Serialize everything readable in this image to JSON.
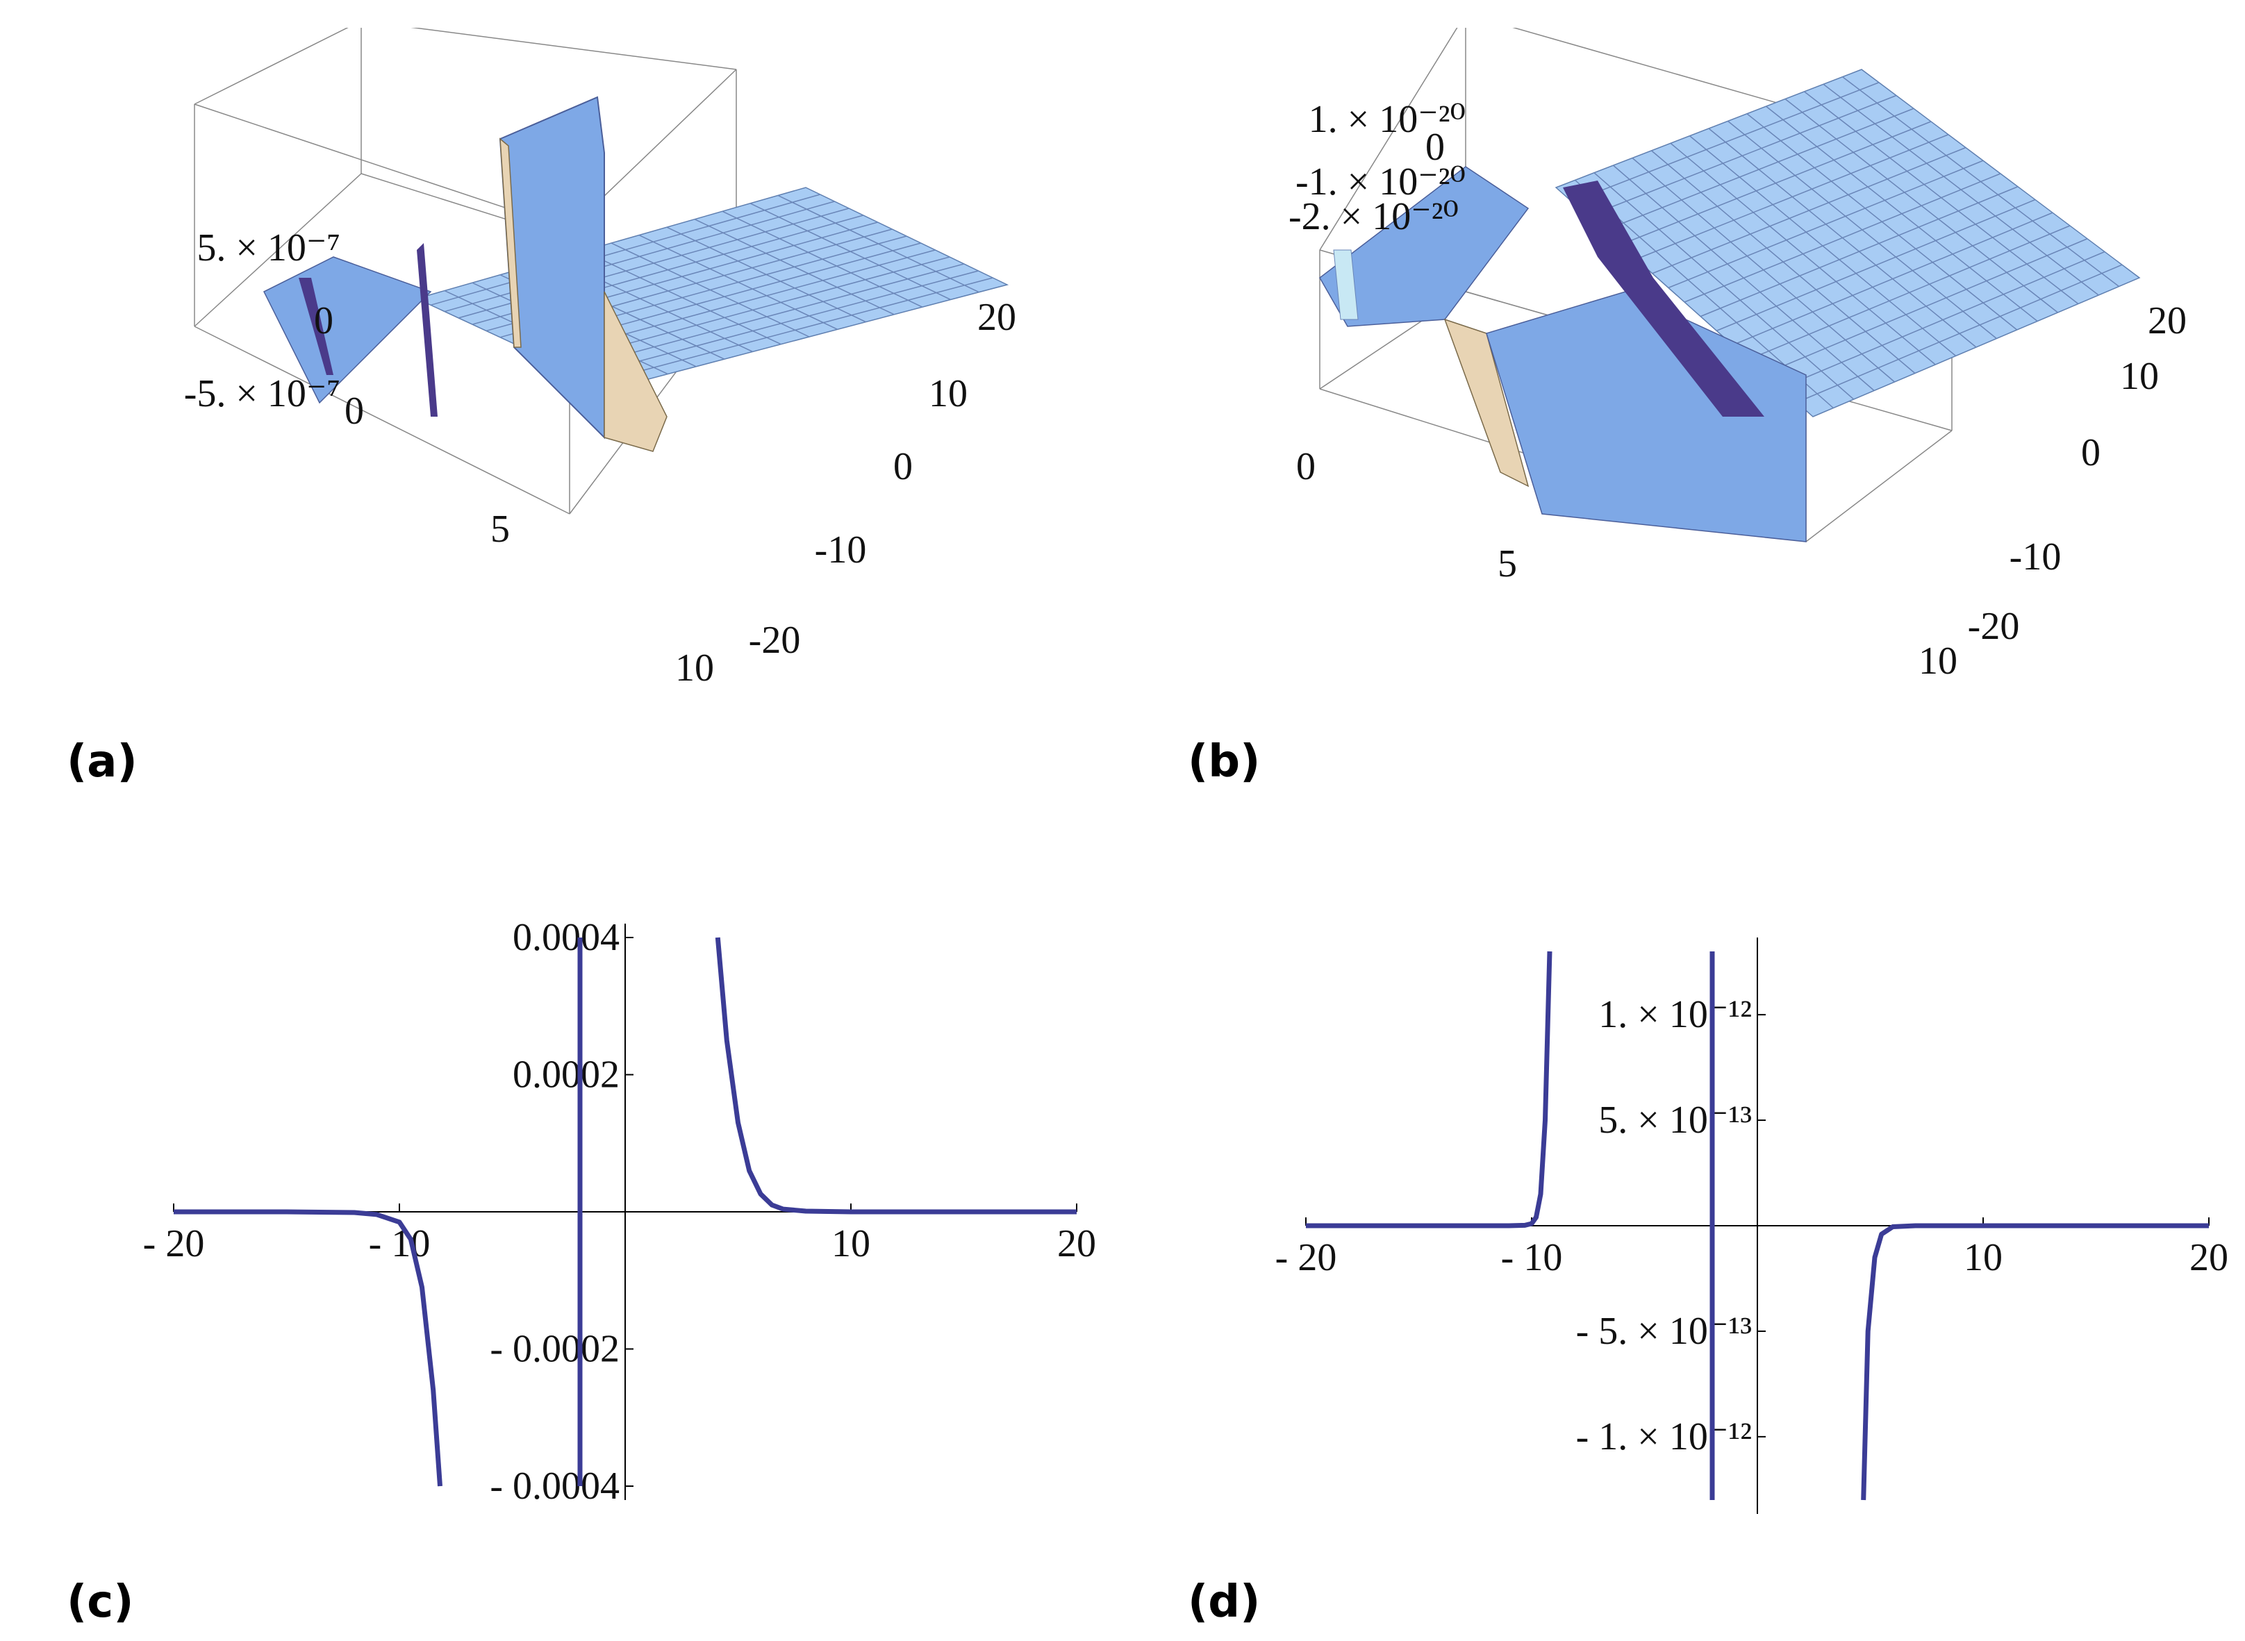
{
  "captions": {
    "a": "(a)",
    "b": "(b)",
    "c": "(c)",
    "d": "(d)"
  },
  "colors": {
    "surface": "#a8ccf4",
    "surface_dark": "#7ea8e6",
    "wall_light": "#e8d4b4",
    "wall_dark": "#4a3a8a",
    "curve": "#3b3c96",
    "axis": "#000000"
  },
  "chart_data": [
    {
      "id": "a",
      "type": "surface3d",
      "x_ticks": [
        "0",
        "5",
        "10"
      ],
      "y_ticks": [
        "-20",
        "-10",
        "0",
        "10",
        "20"
      ],
      "z_ticks": [
        "5. × 10⁻⁷",
        "0",
        "-5. × 10⁻⁷"
      ],
      "xlim": [
        0,
        10
      ],
      "ylim": [
        -20,
        20
      ],
      "zlim": [
        -7e-07,
        7e-07
      ]
    },
    {
      "id": "b",
      "type": "surface3d",
      "x_ticks": [
        "0",
        "5",
        "10"
      ],
      "y_ticks": [
        "-20",
        "-10",
        "0",
        "10",
        "20"
      ],
      "z_ticks": [
        "1. × 10⁻²⁰",
        "0",
        "-1. × 10⁻²⁰",
        "-2. × 10⁻²⁰"
      ],
      "xlim": [
        0,
        10
      ],
      "ylim": [
        -20,
        20
      ],
      "zlim": [
        -2.5e-20,
        1.2e-20
      ]
    },
    {
      "id": "c",
      "type": "line",
      "x_ticks": [
        -20,
        -10,
        10,
        20
      ],
      "x_tick_labels": [
        "- 20",
        "- 10",
        "10",
        "20"
      ],
      "y_ticks": [
        0.0004,
        0.0002,
        -0.0002,
        -0.0004
      ],
      "y_tick_labels": [
        "0.0004",
        "0.0002",
        "- 0.0002",
        "- 0.0004"
      ],
      "xlim": [
        -20,
        20
      ],
      "ylim": [
        -0.0004,
        0.0004
      ],
      "grid": false,
      "series": [
        {
          "x": [
            -20,
            -15,
            -12,
            -11,
            -10,
            -9.5,
            -9,
            -8.5,
            -8.2
          ],
          "y": [
            0,
            0,
            -1e-06,
            -4e-06,
            -1.5e-05,
            -4e-05,
            -0.00011,
            -0.00026,
            -0.0004
          ]
        },
        {
          "x": [
            -2,
            -2
          ],
          "y": [
            -0.0004,
            0.0004
          ]
        },
        {
          "x": [
            4.1,
            4.5,
            5,
            5.5,
            6,
            6.5,
            7,
            8,
            10,
            15,
            20
          ],
          "y": [
            0.0004,
            0.00025,
            0.00013,
            6e-05,
            2.6e-05,
            1e-05,
            4e-06,
            1e-06,
            0,
            0,
            0
          ]
        }
      ]
    },
    {
      "id": "d",
      "type": "line",
      "x_ticks": [
        -20,
        -10,
        10,
        20
      ],
      "x_tick_labels": [
        "- 20",
        "- 10",
        "10",
        "20"
      ],
      "y_ticks": [
        1e-12,
        5e-13,
        -5e-13,
        -1e-12
      ],
      "y_tick_labels": [
        "1. × 10⁻¹²",
        "5. × 10⁻¹³",
        "- 5. × 10⁻¹³",
        "- 1. × 10⁻¹²"
      ],
      "xlim": [
        -20,
        20
      ],
      "ylim": [
        -1.3e-12,
        1.3e-12
      ],
      "grid": false,
      "series": [
        {
          "x": [
            -20,
            -15,
            -11,
            -10.3,
            -10,
            -9.8,
            -9.6,
            -9.4,
            -9.2
          ],
          "y": [
            0,
            0,
            0,
            2e-15,
            1e-14,
            4e-14,
            1.5e-13,
            5e-13,
            1.3e-12
          ]
        },
        {
          "x": [
            -2,
            -2
          ],
          "y": [
            -1.3e-12,
            1.3e-12
          ]
        },
        {
          "x": [
            4.7,
            4.9,
            5.2,
            5.5,
            6,
            7,
            10,
            15,
            20
          ],
          "y": [
            -1.3e-12,
            -5e-13,
            -1.5e-13,
            -4e-14,
            -5e-15,
            0,
            0,
            0,
            0
          ]
        }
      ]
    }
  ]
}
